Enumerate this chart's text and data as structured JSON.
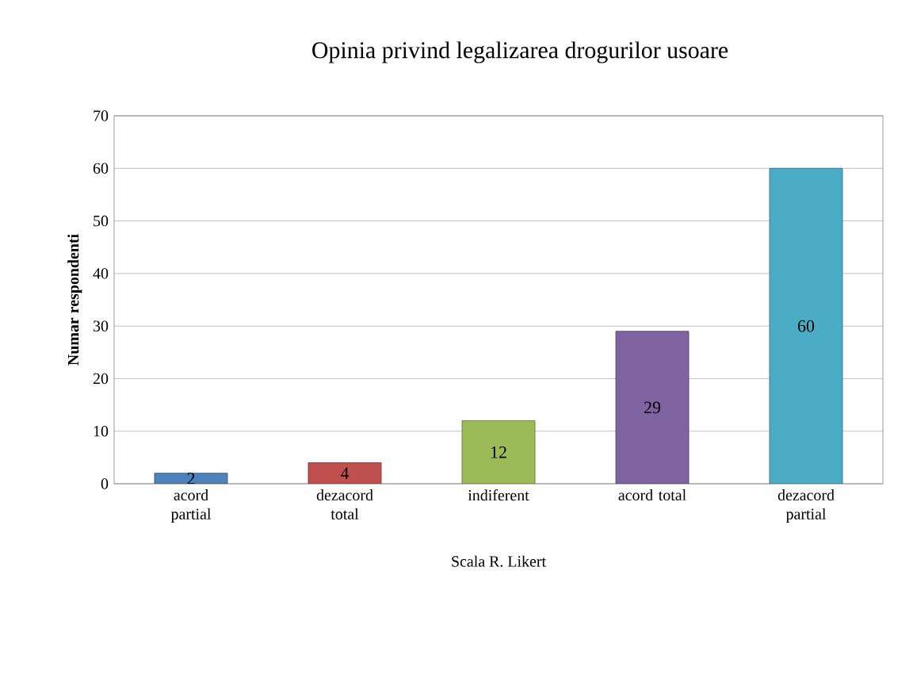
{
  "chart_data": {
    "type": "bar",
    "title": "Opinia privind legalizarea drogurilor usoare",
    "xlabel": "Scala R. Likert",
    "ylabel": "Numar respondenti",
    "categories": [
      "acord partial",
      "dezacord total",
      "indiferent",
      "acord total",
      "dezacord partial"
    ],
    "values": [
      2,
      4,
      12,
      29,
      60
    ],
    "colors": [
      "#4f81bd",
      "#c0504d",
      "#9bbb59",
      "#8064a2",
      "#4bacc6"
    ],
    "ylim": [
      0,
      70
    ],
    "yticks": [
      0,
      10,
      20,
      30,
      40,
      50,
      60,
      70
    ],
    "grid": "y",
    "data_labels": true
  }
}
